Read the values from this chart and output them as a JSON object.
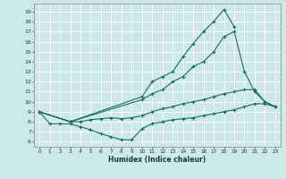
{
  "xlabel": "Humidex (Indice chaleur)",
  "bg_color": "#cce8ea",
  "line_color": "#1a6b5e",
  "grid_color": "#b0d8da",
  "xlim": [
    -0.5,
    23.5
  ],
  "ylim": [
    5.5,
    19.8
  ],
  "xticks": [
    0,
    1,
    2,
    3,
    4,
    5,
    6,
    7,
    8,
    9,
    10,
    11,
    12,
    13,
    14,
    15,
    16,
    17,
    18,
    19,
    20,
    21,
    22,
    23
  ],
  "yticks": [
    6,
    7,
    8,
    9,
    10,
    11,
    12,
    13,
    14,
    15,
    16,
    17,
    18,
    19
  ],
  "line1_x": [
    0,
    3,
    10,
    11,
    12,
    13,
    14,
    15,
    16,
    17,
    18,
    19
  ],
  "line1_y": [
    9,
    8,
    10.5,
    12,
    12.5,
    13,
    14.5,
    15.8,
    17,
    18,
    19.2,
    17.5
  ],
  "line2_x": [
    0,
    3,
    10,
    11,
    12,
    13,
    14,
    15,
    16,
    17,
    18,
    19,
    20,
    21,
    22,
    23
  ],
  "line2_y": [
    9,
    8,
    10.2,
    10.8,
    11.2,
    12,
    12.5,
    13.5,
    14,
    15,
    16.5,
    17,
    13,
    11,
    10,
    9.5
  ],
  "line3_x": [
    0,
    3,
    4,
    5,
    6,
    7,
    8,
    9,
    10,
    11,
    12,
    13,
    14,
    15,
    16,
    17,
    18,
    19,
    20,
    21,
    22,
    23
  ],
  "line3_y": [
    9,
    8,
    8,
    8.2,
    8.3,
    8.4,
    8.3,
    8.4,
    8.6,
    9,
    9.3,
    9.5,
    9.8,
    10,
    10.2,
    10.5,
    10.8,
    11,
    11.2,
    11.2,
    10,
    9.5
  ],
  "line4_x": [
    0,
    1,
    2,
    3,
    4,
    5,
    6,
    7,
    8,
    9,
    10,
    11,
    12,
    13,
    14,
    15,
    16,
    17,
    18,
    19,
    20,
    21,
    22,
    23
  ],
  "line4_y": [
    9,
    7.8,
    7.8,
    7.8,
    7.5,
    7.2,
    6.8,
    6.5,
    6.2,
    6.2,
    7.3,
    7.8,
    8.0,
    8.2,
    8.3,
    8.4,
    8.6,
    8.8,
    9.0,
    9.2,
    9.5,
    9.8,
    9.8,
    9.5
  ]
}
